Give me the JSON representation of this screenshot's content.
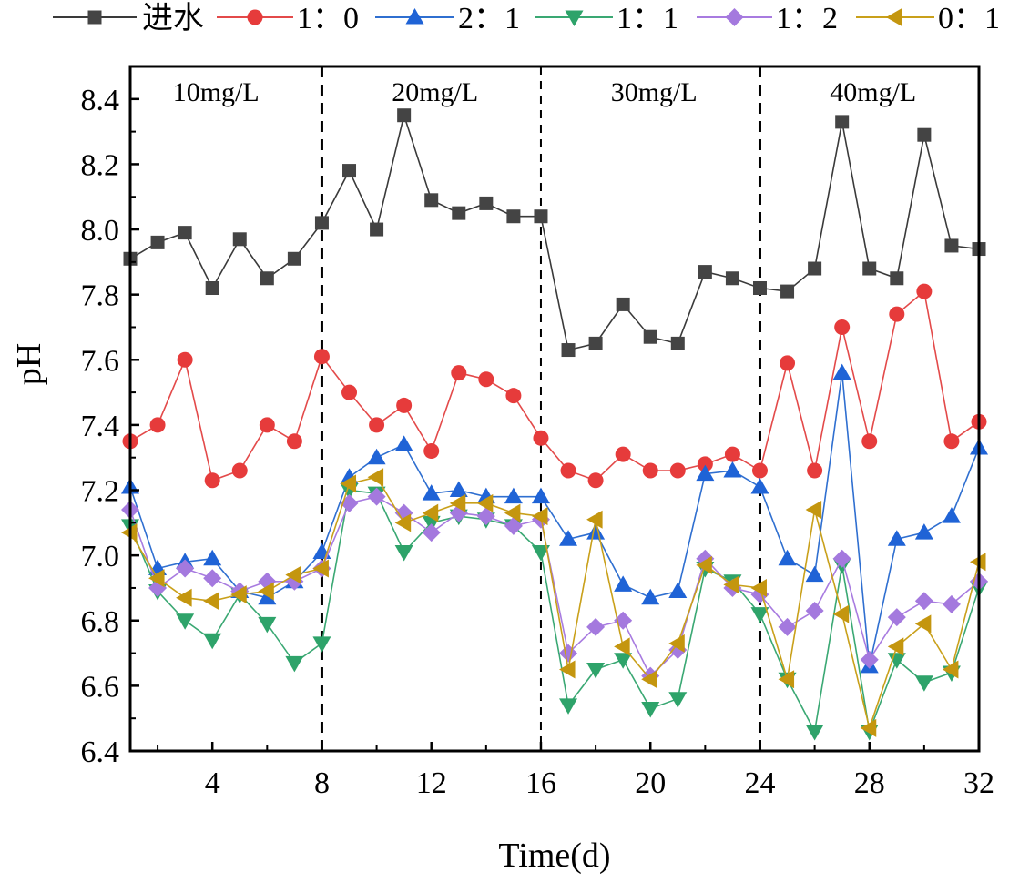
{
  "chart_data": {
    "type": "line",
    "title": "",
    "xlabel": "Time(d)",
    "ylabel": "pH",
    "xlim": [
      1,
      32
    ],
    "ylim": [
      6.4,
      8.5
    ],
    "xticks": [
      4,
      8,
      12,
      16,
      20,
      24,
      28,
      32
    ],
    "yticks": [
      6.4,
      6.6,
      6.8,
      7.0,
      7.2,
      7.4,
      7.6,
      7.8,
      8.0,
      8.2,
      8.4
    ],
    "tick_labels_x": [
      "4",
      "8",
      "12",
      "16",
      "20",
      "24",
      "28",
      "32"
    ],
    "tick_labels_y": [
      "6.4",
      "6.6",
      "6.8",
      "7.0",
      "7.2",
      "7.4",
      "7.6",
      "7.8",
      "8.0",
      "8.2",
      "8.4"
    ],
    "grid": false,
    "legend_position": "top",
    "dividers": [
      8,
      16,
      24
    ],
    "phases": [
      {
        "label": "10mg/L",
        "x": 4
      },
      {
        "label": "20mg/L",
        "x": 12
      },
      {
        "label": "30mg/L",
        "x": 20
      },
      {
        "label": "40mg/L",
        "x": 28
      }
    ],
    "x": [
      1,
      2,
      3,
      4,
      5,
      6,
      7,
      8,
      9,
      10,
      11,
      12,
      13,
      14,
      15,
      16,
      17,
      18,
      19,
      20,
      21,
      22,
      23,
      24,
      25,
      26,
      27,
      28,
      29,
      30,
      31,
      32
    ],
    "series": [
      {
        "name": "进水",
        "color": "#3a3a3a",
        "fill": "#444444",
        "marker": "square",
        "values": [
          7.91,
          7.96,
          7.99,
          7.82,
          7.97,
          7.85,
          7.91,
          8.02,
          8.18,
          8.0,
          8.35,
          8.09,
          8.05,
          8.08,
          8.04,
          8.04,
          7.63,
          7.65,
          7.77,
          7.67,
          7.65,
          7.87,
          7.85,
          7.82,
          7.81,
          7.88,
          8.33,
          7.88,
          7.85,
          8.29,
          7.95,
          7.94
        ]
      },
      {
        "name": "1：0",
        "color": "#e34a4a",
        "fill": "#e63b3b",
        "marker": "circle",
        "values": [
          7.35,
          7.4,
          7.6,
          7.23,
          7.26,
          7.4,
          7.35,
          7.61,
          7.5,
          7.4,
          7.46,
          7.32,
          7.56,
          7.54,
          7.49,
          7.36,
          7.26,
          7.23,
          7.31,
          7.26,
          7.26,
          7.28,
          7.31,
          7.26,
          7.59,
          7.26,
          7.7,
          7.35,
          7.74,
          7.81,
          7.35,
          7.41
        ]
      },
      {
        "name": "2：1",
        "color": "#2f6fd0",
        "fill": "#1f63d6",
        "marker": "triangle-up",
        "values": [
          7.21,
          6.96,
          6.98,
          6.99,
          6.89,
          6.87,
          6.92,
          7.01,
          7.24,
          7.3,
          7.34,
          7.19,
          7.2,
          7.18,
          7.18,
          7.18,
          7.05,
          7.07,
          6.91,
          6.87,
          6.89,
          7.25,
          7.26,
          7.21,
          6.99,
          6.94,
          7.56,
          6.66,
          7.05,
          7.07,
          7.12,
          7.33
        ]
      },
      {
        "name": "1：1",
        "color": "#3aa873",
        "fill": "#2ea36a",
        "marker": "triangle-down",
        "values": [
          7.09,
          6.89,
          6.8,
          6.74,
          6.88,
          6.79,
          6.67,
          6.73,
          7.2,
          7.19,
          7.01,
          7.1,
          7.12,
          7.11,
          7.09,
          7.01,
          6.54,
          6.65,
          6.68,
          6.53,
          6.56,
          6.96,
          6.92,
          6.82,
          6.62,
          6.46,
          6.97,
          6.46,
          6.68,
          6.61,
          6.64,
          6.9
        ]
      },
      {
        "name": "1：2",
        "color": "#a87be0",
        "fill": "#a479de",
        "marker": "diamond",
        "values": [
          7.14,
          6.9,
          6.96,
          6.93,
          6.89,
          6.92,
          6.92,
          6.96,
          7.16,
          7.18,
          7.13,
          7.07,
          7.13,
          7.12,
          7.09,
          7.11,
          6.7,
          6.78,
          6.8,
          6.63,
          6.71,
          6.99,
          6.9,
          6.88,
          6.78,
          6.83,
          6.99,
          6.68,
          6.81,
          6.86,
          6.85,
          6.92
        ]
      },
      {
        "name": "0：1",
        "color": "#c9a01a",
        "fill": "#c4960f",
        "marker": "triangle-left",
        "values": [
          7.07,
          6.93,
          6.87,
          6.86,
          6.88,
          6.89,
          6.94,
          6.96,
          7.22,
          7.24,
          7.1,
          7.13,
          7.16,
          7.16,
          7.13,
          7.12,
          6.65,
          7.11,
          6.72,
          6.62,
          6.73,
          6.97,
          6.91,
          6.9,
          6.62,
          7.14,
          6.82,
          6.47,
          6.72,
          6.79,
          6.65,
          6.98
        ]
      }
    ]
  }
}
